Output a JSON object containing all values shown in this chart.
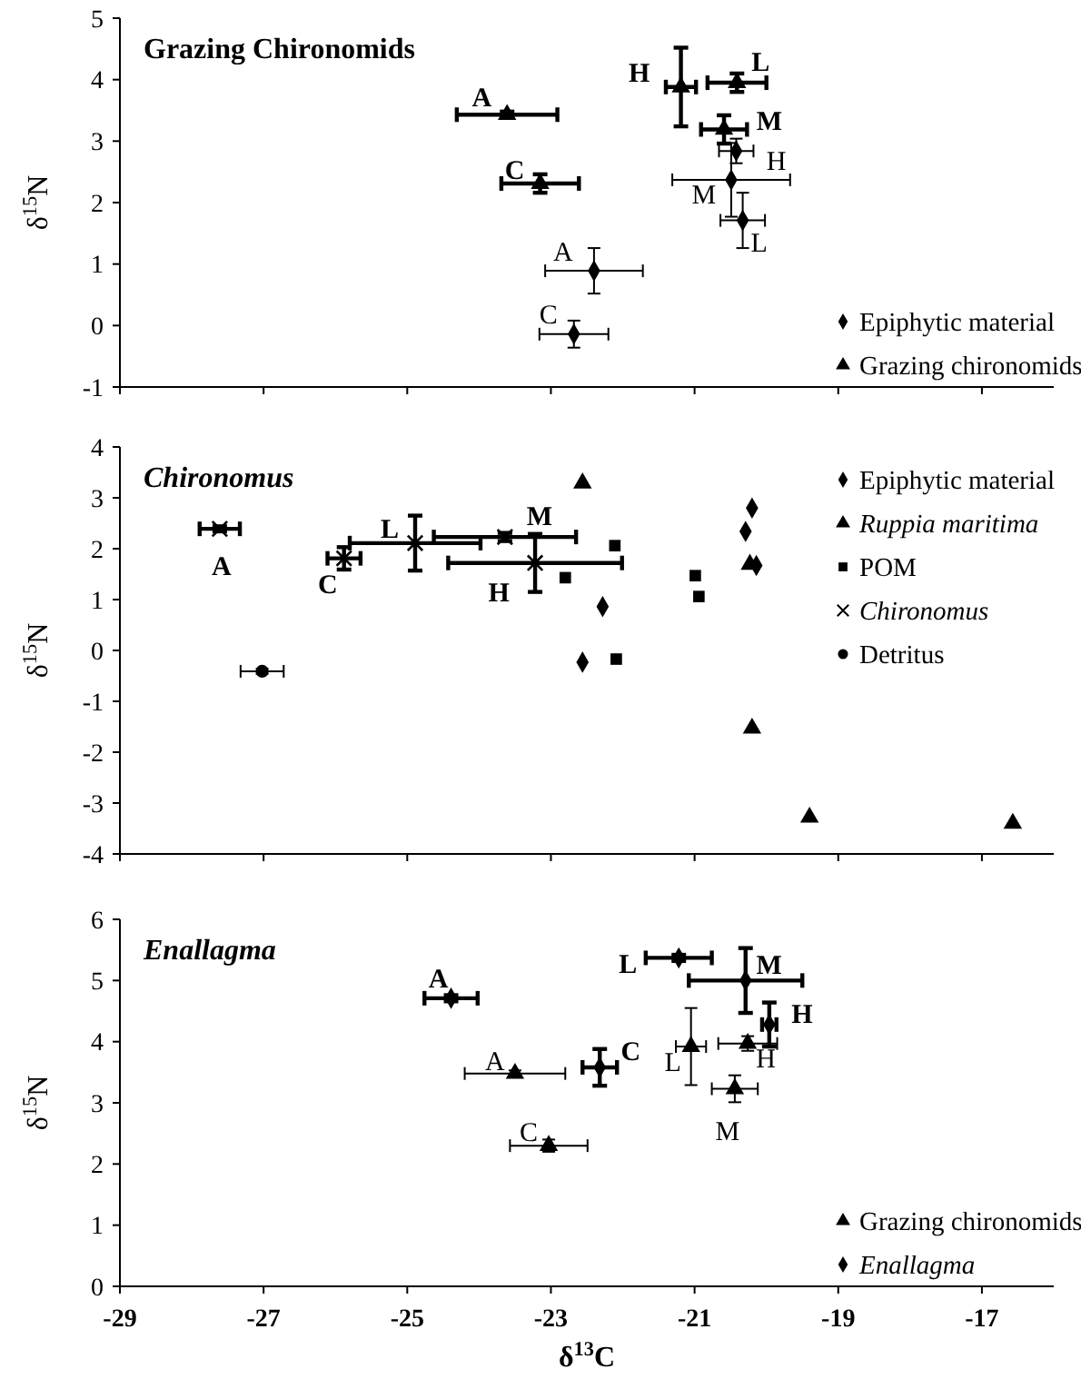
{
  "chart_data": [
    {
      "type": "scatter",
      "title": "Grazing Chironomids",
      "ylabel": "δ$^{15}$N",
      "xlim": [
        -29,
        -16
      ],
      "xticks": [
        -29,
        -27,
        -25,
        -23,
        -21,
        -19,
        -17
      ],
      "ylim": [
        -1,
        5
      ],
      "yticks": [
        -1,
        0,
        1,
        2,
        3,
        4,
        5
      ],
      "tick_labels": "y",
      "legend": "bottom right",
      "series": [
        {
          "name": "Epiphytic material",
          "color": "#000000",
          "marker": "diamond",
          "x": [
            -20.42,
            -20.49,
            -20.33,
            -22.4,
            -22.68
          ],
          "values": [
            2.84,
            2.37,
            1.71,
            0.89,
            -0.14
          ],
          "xerrors": [
            0.24,
            0.82,
            0.31,
            0.68,
            0.48
          ],
          "errors": [
            0.2,
            0.6,
            0.45,
            0.37,
            0.22
          ],
          "value_labels": [
            "H",
            "M",
            "L",
            "A",
            "C"
          ]
        },
        {
          "name": "Grazing chironomids",
          "color": "#000000",
          "marker": "triangle",
          "x": [
            -23.61,
            -23.15,
            -21.19,
            -20.41,
            -20.59
          ],
          "values": [
            3.43,
            2.31,
            3.88,
            3.95,
            3.19
          ],
          "xerrors": [
            0.7,
            0.54,
            0.21,
            0.41,
            0.32
          ],
          "errors": [
            0.05,
            0.15,
            0.64,
            0.15,
            0.23
          ],
          "value_labels": [
            "A",
            "C",
            "H",
            "L",
            "M"
          ]
        }
      ]
    },
    {
      "type": "scatter",
      "title": "Chironomus",
      "ylabel": "δ$^{15}$N",
      "xlim": [
        -29,
        -16
      ],
      "xticks": [
        -29,
        -27,
        -25,
        -23,
        -21,
        -19,
        -17
      ],
      "ylim": [
        -4,
        4
      ],
      "yticks": [
        -4,
        -3,
        -2,
        -1,
        0,
        1,
        2,
        3,
        4
      ],
      "tick_labels": "y",
      "legend": "top right",
      "series": [
        {
          "name": "Epiphytic material",
          "color": "#000000",
          "marker": "diamond",
          "x": [
            -20.2,
            -20.29,
            -20.14,
            -22.28,
            -22.56
          ],
          "values": [
            2.8,
            2.34,
            1.67,
            0.86,
            -0.23
          ]
        },
        {
          "name": "Ruppia maritima",
          "color": "#000000",
          "marker": "triangle",
          "x": [
            -22.56,
            -20.23,
            -20.2,
            -19.4,
            -16.57
          ],
          "values": [
            3.29,
            1.69,
            -1.53,
            -3.28,
            -3.4
          ]
        },
        {
          "name": "POM",
          "color": "#000000",
          "marker": "square",
          "x": [
            -22.11,
            -22.8,
            -20.99,
            -20.94,
            -22.09
          ],
          "values": [
            2.06,
            1.43,
            1.47,
            1.06,
            -0.17
          ]
        },
        {
          "name": "Chironomus",
          "color": "#000000",
          "marker": "cross",
          "x": [
            -27.61,
            -25.88,
            -24.89,
            -23.64,
            -23.22
          ],
          "values": [
            2.39,
            1.81,
            2.11,
            2.23,
            1.72
          ],
          "xerrors": [
            0.28,
            0.23,
            0.91,
            0.99,
            1.21
          ],
          "errors": [
            0.05,
            0.22,
            0.54,
            0.08,
            0.57
          ],
          "value_labels": [
            "A",
            "C",
            "L",
            "M",
            "H"
          ]
        },
        {
          "name": "Detritus",
          "color": "#000000",
          "marker": "circle",
          "x": [
            -27.02
          ],
          "values": [
            -0.41
          ],
          "xerrors": [
            0.3
          ],
          "errors": [
            0.05
          ]
        }
      ]
    },
    {
      "type": "scatter",
      "title": "Enallagma",
      "xlabel": "δ$^{13}$C",
      "ylabel": "δ$^{15}$N",
      "xlim": [
        -29,
        -16
      ],
      "xticks": [
        -29,
        -27,
        -25,
        -23,
        -21,
        -19,
        -17
      ],
      "ylim": [
        0,
        6
      ],
      "yticks": [
        0,
        1,
        2,
        3,
        4,
        5,
        6
      ],
      "legend": "bottom right",
      "series": [
        {
          "name": "Grazing chironomids",
          "color": "#000000",
          "marker": "triangle",
          "x": [
            -23.5,
            -23.03,
            -21.05,
            -20.26,
            -20.44
          ],
          "values": [
            3.48,
            2.3,
            3.92,
            3.97,
            3.23
          ],
          "xerrors": [
            0.7,
            0.54,
            0.21,
            0.41,
            0.32
          ],
          "errors": [
            0.05,
            0.1,
            0.63,
            0.12,
            0.22
          ],
          "value_labels": [
            "A",
            "C",
            "L",
            "H",
            "M"
          ]
        },
        {
          "name": "Enallagma",
          "color": "#000000",
          "marker": "diamond",
          "x": [
            -24.39,
            -21.22,
            -20.29,
            -19.96,
            -22.32
          ],
          "values": [
            4.71,
            5.37,
            5.0,
            4.28,
            3.58
          ],
          "xerrors": [
            0.37,
            0.46,
            0.79,
            0.1,
            0.24
          ],
          "errors": [
            0.05,
            0.05,
            0.53,
            0.36,
            0.3
          ],
          "value_labels": [
            "A",
            "L",
            "M",
            "H",
            "C"
          ]
        }
      ]
    }
  ]
}
